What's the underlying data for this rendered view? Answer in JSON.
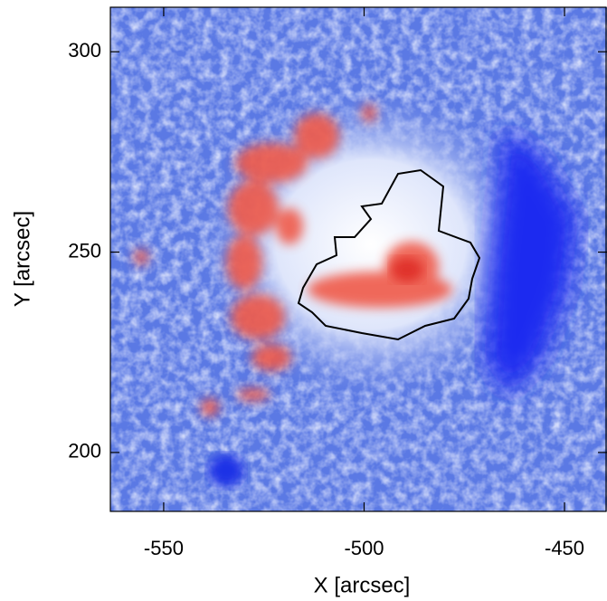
{
  "chart_data": {
    "type": "image",
    "xlabel": "X [arcsec]",
    "ylabel": "Y [arcsec]",
    "xlim": [
      -563.3,
      -439.4
    ],
    "ylim": [
      185.3,
      311.1
    ],
    "xticks": [
      -550,
      -500,
      -450
    ],
    "yticks": [
      200,
      250,
      300
    ]
  }
}
